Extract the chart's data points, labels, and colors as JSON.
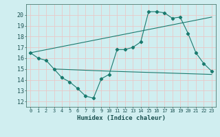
{
  "xlabel": "Humidex (Indice chaleur)",
  "bg_color": "#d0eef0",
  "grid_color": "#c8dfe0",
  "line_color": "#1a7a6e",
  "xlim": [
    -0.5,
    23.5
  ],
  "ylim": [
    11.5,
    21.0
  ],
  "yticks": [
    12,
    13,
    14,
    15,
    16,
    17,
    18,
    19,
    20
  ],
  "xticks": [
    0,
    1,
    2,
    3,
    4,
    5,
    6,
    7,
    8,
    9,
    10,
    11,
    12,
    13,
    14,
    15,
    16,
    17,
    18,
    19,
    20,
    21,
    22,
    23
  ],
  "line1_x": [
    0,
    1,
    2,
    3,
    4,
    5,
    6,
    7,
    8,
    9,
    10,
    11,
    12,
    13,
    14,
    15,
    16,
    17,
    18,
    19,
    20,
    21,
    22,
    23
  ],
  "line1_y": [
    16.5,
    16.0,
    15.8,
    15.0,
    14.2,
    13.8,
    13.2,
    12.5,
    12.3,
    14.1,
    14.5,
    16.8,
    16.8,
    17.0,
    17.5,
    20.3,
    20.3,
    20.2,
    19.7,
    19.8,
    18.3,
    16.5,
    15.5,
    14.8
  ],
  "line2_x": [
    3,
    10,
    23
  ],
  "line2_y": [
    15.0,
    14.8,
    14.5
  ],
  "line3_x": [
    0,
    23
  ],
  "line3_y": [
    16.5,
    19.8
  ]
}
